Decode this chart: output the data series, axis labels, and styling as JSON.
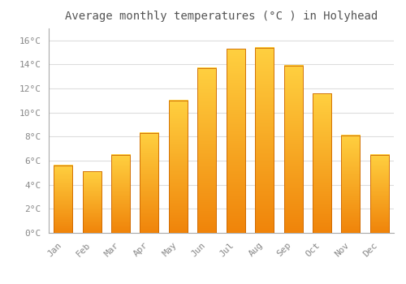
{
  "title": "Average monthly temperatures (°C ) in Holyhead",
  "months": [
    "Jan",
    "Feb",
    "Mar",
    "Apr",
    "May",
    "Jun",
    "Jul",
    "Aug",
    "Sep",
    "Oct",
    "Nov",
    "Dec"
  ],
  "temperatures": [
    5.6,
    5.1,
    6.5,
    8.3,
    11.0,
    13.7,
    15.3,
    15.4,
    13.9,
    11.6,
    8.1,
    6.5
  ],
  "bar_color_top": "#FFD040",
  "bar_color_bottom": "#F0840A",
  "bar_edge_color": "#CC6600",
  "background_color": "#FFFFFF",
  "grid_color": "#DDDDDD",
  "text_color": "#888888",
  "title_color": "#555555",
  "ylim": [
    0,
    17
  ],
  "yticks": [
    0,
    2,
    4,
    6,
    8,
    10,
    12,
    14,
    16
  ],
  "title_fontsize": 10,
  "tick_fontsize": 8,
  "bar_width": 0.65
}
